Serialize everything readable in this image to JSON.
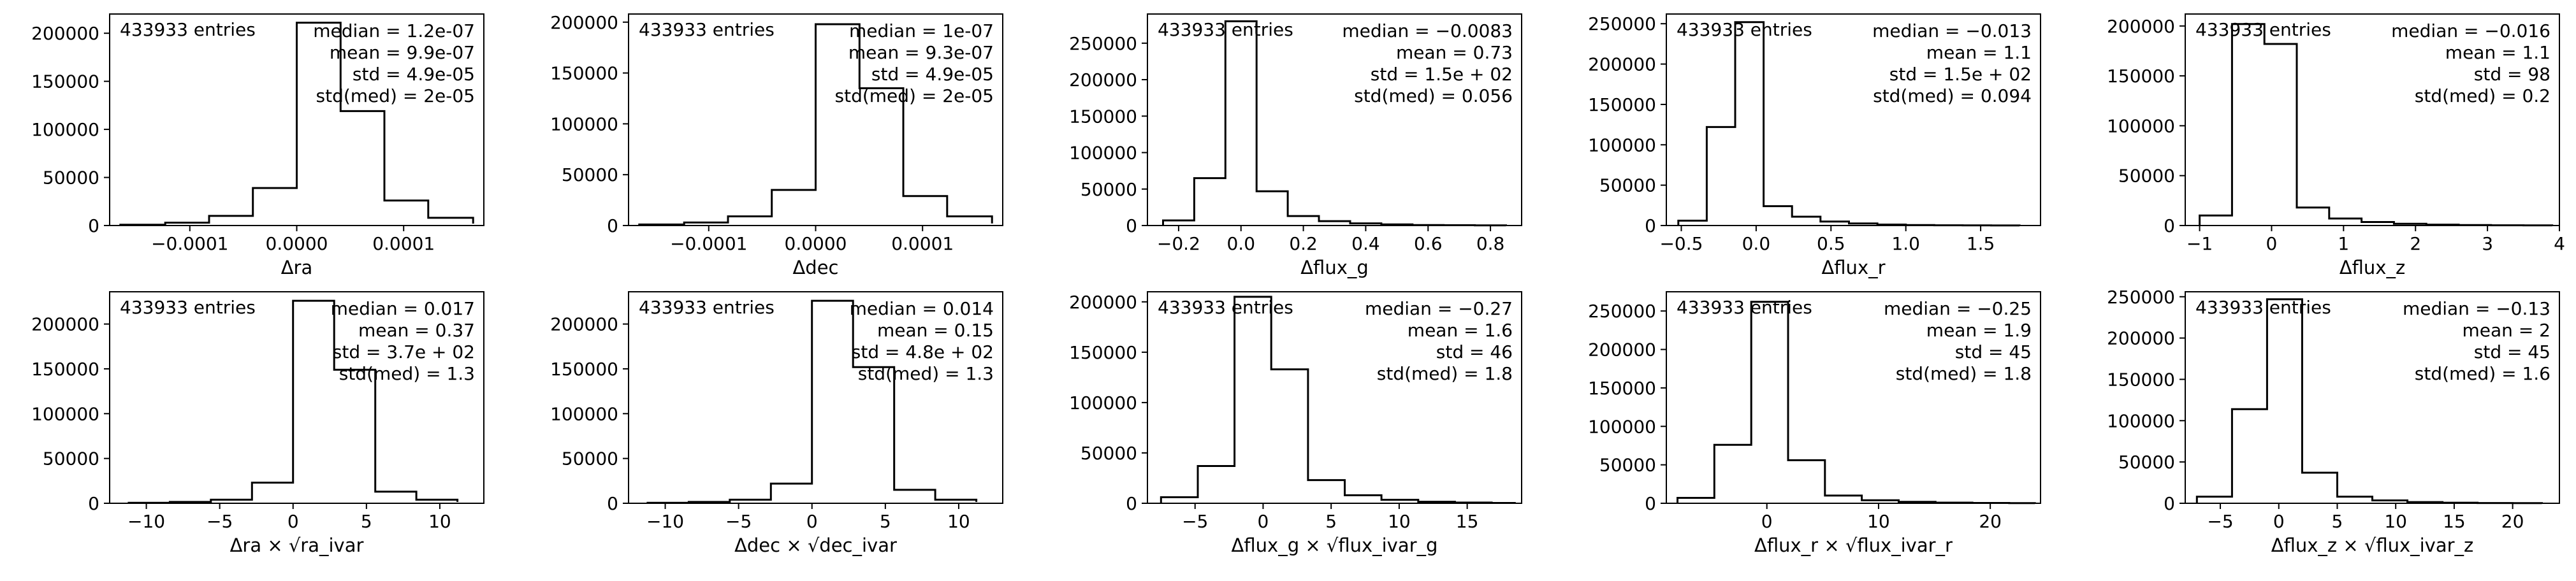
{
  "chart_data": [
    {
      "type": "bar",
      "histogram": true,
      "entries_label": "433933 entries",
      "stats": [
        "median = 1.2e-07",
        "mean = 9.9e-07",
        "std = 4.9e-05",
        "std(med) = 2e-05"
      ],
      "xlabel": "Δra",
      "bin_edges": [
        -0.000165,
        -0.000123,
        -8.2e-05,
        -4.1e-05,
        0.0,
        4.1e-05,
        8.2e-05,
        0.000123,
        0.000165
      ],
      "values": [
        800,
        3000,
        10000,
        39000,
        211000,
        119000,
        26000,
        8000,
        2000
      ],
      "xlim": [
        -0.000175,
        0.000175
      ],
      "ylim": [
        0,
        220000
      ],
      "xticks": [
        -0.0001,
        0.0,
        0.0001
      ],
      "xtick_labels": [
        "−0.0001",
        "0.0000",
        "0.0001"
      ],
      "yticks": [
        0,
        50000,
        100000,
        150000,
        200000
      ],
      "ytick_labels": [
        "0",
        "50000",
        "100000",
        "150000",
        "200000"
      ]
    },
    {
      "type": "bar",
      "histogram": true,
      "entries_label": "433933 entries",
      "stats": [
        "median = 1e-07",
        "mean = 9.3e-07",
        "std = 4.9e-05",
        "std(med) = 2e-05"
      ],
      "xlabel": "Δdec",
      "bin_edges": [
        -0.000165,
        -0.000123,
        -8.2e-05,
        -4.1e-05,
        0.0,
        4.1e-05,
        8.2e-05,
        0.000123,
        0.000165
      ],
      "values": [
        1000,
        3000,
        9000,
        35000,
        198000,
        135000,
        29000,
        9000,
        2000
      ],
      "xlim": [
        -0.000175,
        0.000175
      ],
      "ylim": [
        0,
        208000
      ],
      "xticks": [
        -0.0001,
        0.0,
        0.0001
      ],
      "xtick_labels": [
        "−0.0001",
        "0.0000",
        "0.0001"
      ],
      "yticks": [
        0,
        50000,
        100000,
        150000,
        200000
      ],
      "ytick_labels": [
        "0",
        "50000",
        "100000",
        "150000",
        "200000"
      ]
    },
    {
      "type": "bar",
      "histogram": true,
      "entries_label": "433933 entries",
      "stats": [
        "median = −0.0083",
        "mean = 0.73",
        "std = 1.5e + 02",
        "std(med) = 0.056"
      ],
      "xlabel": "Δflux_g",
      "bin_edges": [
        -0.25,
        -0.15,
        -0.05,
        0.05,
        0.15,
        0.25,
        0.35,
        0.45,
        0.55,
        0.65,
        0.75,
        0.85
      ],
      "values": [
        7000,
        65000,
        280000,
        47000,
        13000,
        6000,
        3000,
        1500,
        700,
        400,
        200
      ],
      "xlim": [
        -0.3,
        0.9
      ],
      "ylim": [
        0,
        290000
      ],
      "xticks": [
        -0.2,
        0.0,
        0.2,
        0.4,
        0.6,
        0.8
      ],
      "xtick_labels": [
        "−0.2",
        "0.0",
        "0.2",
        "0.4",
        "0.6",
        "0.8"
      ],
      "yticks": [
        0,
        50000,
        100000,
        150000,
        200000,
        250000
      ],
      "ytick_labels": [
        "0",
        "50000",
        "100000",
        "150000",
        "200000",
        "250000"
      ]
    },
    {
      "type": "bar",
      "histogram": true,
      "entries_label": "433933 entries",
      "stats": [
        "median = −0.013",
        "mean = 1.1",
        "std = 1.5e + 02",
        "std(med) = 0.094"
      ],
      "xlabel": "Δflux_r",
      "bin_edges": [
        -0.52,
        -0.33,
        -0.14,
        0.05,
        0.24,
        0.43,
        0.62,
        0.81,
        1.0,
        1.19,
        1.38,
        1.57,
        1.76
      ],
      "values": [
        6000,
        122000,
        252000,
        24000,
        11000,
        5000,
        2500,
        1200,
        600,
        300,
        150,
        80
      ],
      "xlim": [
        -0.6,
        1.9
      ],
      "ylim": [
        0,
        262000
      ],
      "xticks": [
        -0.5,
        0.0,
        0.5,
        1.0,
        1.5
      ],
      "xtick_labels": [
        "−0.5",
        "0.0",
        "0.5",
        "1.0",
        "1.5"
      ],
      "yticks": [
        0,
        50000,
        100000,
        150000,
        200000,
        250000
      ],
      "ytick_labels": [
        "0",
        "50000",
        "100000",
        "150000",
        "200000",
        "250000"
      ]
    },
    {
      "type": "bar",
      "histogram": true,
      "entries_label": "433933 entries",
      "stats": [
        "median = −0.016",
        "mean = 1.1",
        "std = 98",
        "std(med) = 0.2"
      ],
      "xlabel": "Δflux_z",
      "bin_edges": [
        -1.0,
        -0.55,
        -0.1,
        0.35,
        0.8,
        1.25,
        1.7,
        2.15,
        2.6,
        3.05,
        3.5,
        3.9
      ],
      "values": [
        10000,
        202000,
        182000,
        18000,
        7000,
        3500,
        1800,
        900,
        500,
        250,
        120
      ],
      "xlim": [
        -1.2,
        4.0
      ],
      "ylim": [
        0,
        212000
      ],
      "xticks": [
        -1,
        0,
        1,
        2,
        3,
        4
      ],
      "xtick_labels": [
        "−1",
        "0",
        "1",
        "2",
        "3",
        "4"
      ],
      "yticks": [
        0,
        50000,
        100000,
        150000,
        200000,
        250000
      ],
      "ytick_labels": [
        "0",
        "50000",
        "100000",
        "150000",
        "200000",
        "250000"
      ]
    },
    {
      "type": "bar",
      "histogram": true,
      "entries_label": "433933 entries",
      "stats": [
        "median = 0.017",
        "mean = 0.37",
        "std = 3.7e + 02",
        "std(med) = 1.3"
      ],
      "xlabel": "Δra × √ra_ivar",
      "bin_edges": [
        -11.2,
        -8.4,
        -5.6,
        -2.8,
        0.0,
        2.8,
        5.6,
        8.4,
        11.2
      ],
      "values": [
        600,
        1500,
        4000,
        23000,
        226000,
        149000,
        13000,
        4000,
        1500
      ],
      "xlim": [
        -12.5,
        13.0
      ],
      "ylim": [
        0,
        236000
      ],
      "xticks": [
        -10,
        -5,
        0,
        5,
        10
      ],
      "xtick_labels": [
        "−10",
        "−5",
        "0",
        "5",
        "10"
      ],
      "yticks": [
        0,
        50000,
        100000,
        150000,
        200000
      ],
      "ytick_labels": [
        "0",
        "50000",
        "100000",
        "150000",
        "200000"
      ]
    },
    {
      "type": "bar",
      "histogram": true,
      "entries_label": "433933 entries",
      "stats": [
        "median = 0.014",
        "mean = 0.15",
        "std = 4.8e + 02",
        "std(med) = 1.3"
      ],
      "xlabel": "Δdec × √dec_ivar",
      "bin_edges": [
        -11.2,
        -8.4,
        -5.6,
        -2.8,
        0.0,
        2.8,
        5.6,
        8.4,
        11.2
      ],
      "values": [
        600,
        1500,
        4000,
        22000,
        226000,
        152000,
        15000,
        4000,
        1500
      ],
      "xlim": [
        -12.5,
        13.0
      ],
      "ylim": [
        0,
        236000
      ],
      "xticks": [
        -10,
        -5,
        0,
        5,
        10
      ],
      "xtick_labels": [
        "−10",
        "−5",
        "0",
        "5",
        "10"
      ],
      "yticks": [
        0,
        50000,
        100000,
        150000,
        200000
      ],
      "ytick_labels": [
        "0",
        "50000",
        "100000",
        "150000",
        "200000"
      ]
    },
    {
      "type": "bar",
      "histogram": true,
      "entries_label": "433933 entries",
      "stats": [
        "median = −0.27",
        "mean = 1.6",
        "std = 46",
        "std(med) = 1.8"
      ],
      "xlabel": "Δflux_g × √flux_ivar_g",
      "bin_edges": [
        -7.5,
        -4.8,
        -2.1,
        0.6,
        3.3,
        6.0,
        8.7,
        11.4,
        14.1,
        16.8,
        18.5
      ],
      "values": [
        6000,
        37000,
        205000,
        133000,
        23000,
        8000,
        3500,
        1500,
        700,
        300
      ],
      "xlim": [
        -8.5,
        19.0
      ],
      "ylim": [
        0,
        210000
      ],
      "xticks": [
        -5,
        0,
        5,
        10,
        15
      ],
      "xtick_labels": [
        "−5",
        "0",
        "5",
        "10",
        "15"
      ],
      "yticks": [
        0,
        50000,
        100000,
        150000,
        200000
      ],
      "ytick_labels": [
        "0",
        "50000",
        "100000",
        "150000",
        "200000"
      ]
    },
    {
      "type": "bar",
      "histogram": true,
      "entries_label": "433933 entries",
      "stats": [
        "median = −0.25",
        "mean = 1.9",
        "std = 45",
        "std(med) = 1.8"
      ],
      "xlabel": "Δflux_r × √flux_ivar_r",
      "bin_edges": [
        -8.0,
        -4.7,
        -1.4,
        1.9,
        5.2,
        8.5,
        11.8,
        15.1,
        18.4,
        21.7,
        24.0
      ],
      "values": [
        7000,
        76000,
        262000,
        56000,
        10000,
        4000,
        1800,
        800,
        400,
        200
      ],
      "xlim": [
        -9.0,
        24.5
      ],
      "ylim": [
        0,
        275000
      ],
      "xticks": [
        0,
        10,
        20
      ],
      "xtick_labels": [
        "0",
        "10",
        "20"
      ],
      "yticks": [
        0,
        50000,
        100000,
        150000,
        200000,
        250000
      ],
      "ytick_labels": [
        "0",
        "50000",
        "100000",
        "150000",
        "200000",
        "250000"
      ]
    },
    {
      "type": "bar",
      "histogram": true,
      "entries_label": "433933 entries",
      "stats": [
        "median = −0.13",
        "mean = 2",
        "std = 45",
        "std(med) = 1.6"
      ],
      "xlabel": "Δflux_z × √flux_ivar_z",
      "bin_edges": [
        -7.0,
        -4.0,
        -1.0,
        2.0,
        5.0,
        8.0,
        11.0,
        14.0,
        17.0,
        20.0,
        22.5
      ],
      "values": [
        8000,
        114000,
        247000,
        37000,
        8000,
        3500,
        1500,
        700,
        300,
        150
      ],
      "xlim": [
        -8.0,
        24.0
      ],
      "ylim": [
        0,
        256000
      ],
      "xticks": [
        -5,
        0,
        5,
        10,
        15,
        20
      ],
      "xtick_labels": [
        "−5",
        "0",
        "5",
        "10",
        "15",
        "20"
      ],
      "yticks": [
        0,
        50000,
        100000,
        150000,
        200000,
        250000
      ],
      "ytick_labels": [
        "0",
        "50000",
        "100000",
        "150000",
        "200000",
        "250000"
      ]
    }
  ]
}
